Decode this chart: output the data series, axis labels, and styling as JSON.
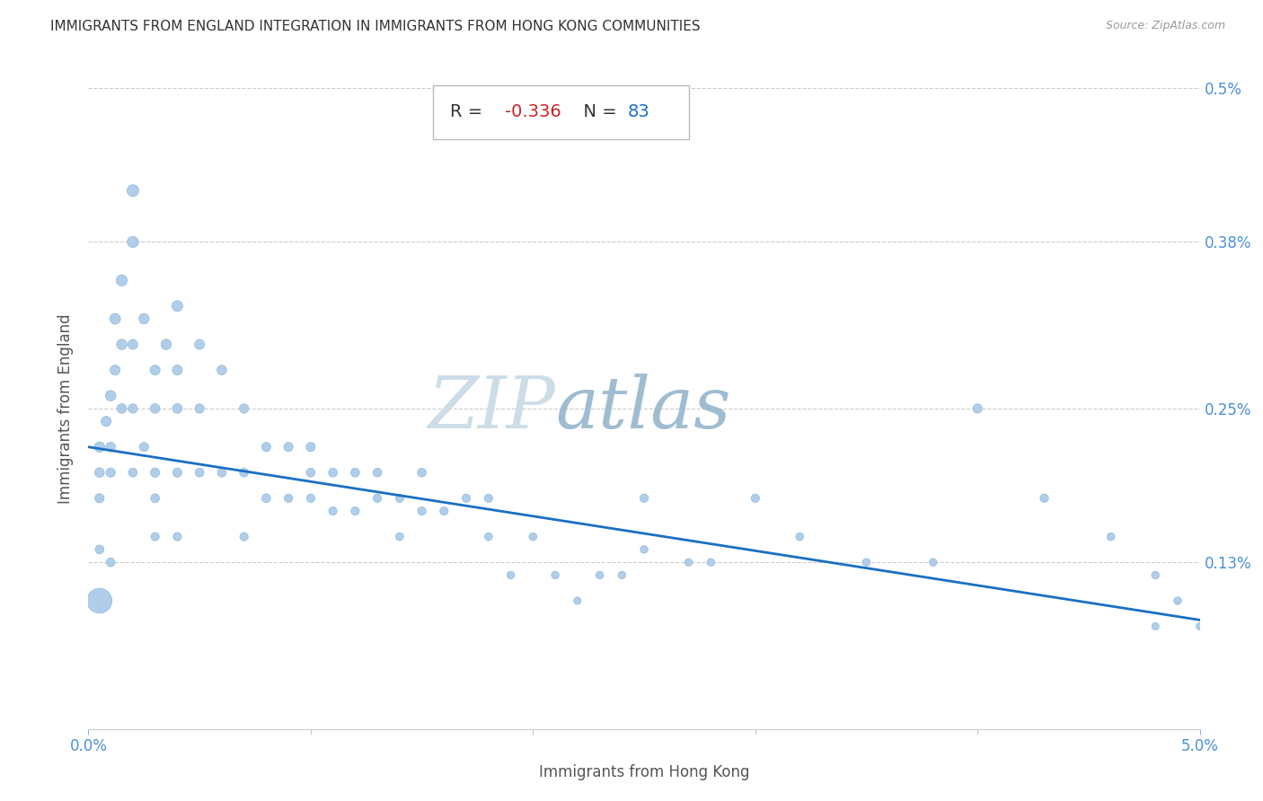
{
  "title": "IMMIGRANTS FROM ENGLAND INTEGRATION IN IMMIGRANTS FROM HONG KONG COMMUNITIES",
  "source": "Source: ZipAtlas.com",
  "xlabel": "Immigrants from Hong Kong",
  "ylabel": "Immigrants from England",
  "R": -0.336,
  "N": 83,
  "xlim": [
    0.0,
    0.05
  ],
  "ylim": [
    0.0,
    0.005
  ],
  "xticks": [
    0.0,
    0.05
  ],
  "xticklabels": [
    "0.0%",
    "5.0%"
  ],
  "right_yticks": [
    0.0013,
    0.0025,
    0.0038,
    0.005
  ],
  "right_yticklabels": [
    "0.13%",
    "0.25%",
    "0.38%",
    "0.5%"
  ],
  "dot_color": "#a8c8e8",
  "dot_edge_color": "#8ab8d8",
  "line_color": "#1a6fc4",
  "watermark_zip_color": "#c8ddf0",
  "watermark_atlas_color": "#9fbfd8",
  "title_color": "#333333",
  "axis_label_color": "#555555",
  "tick_color": "#4a90d9",
  "grid_color": "#cccccc",
  "regression_x0": 0.0,
  "regression_y0": 0.0022,
  "regression_x1": 0.05,
  "regression_y1": 0.00085,
  "scatter_x": [
    0.0005,
    0.0005,
    0.0005,
    0.0005,
    0.0005,
    0.0008,
    0.001,
    0.001,
    0.001,
    0.001,
    0.0012,
    0.0012,
    0.0015,
    0.0015,
    0.0015,
    0.002,
    0.002,
    0.002,
    0.002,
    0.002,
    0.0025,
    0.0025,
    0.003,
    0.003,
    0.003,
    0.003,
    0.003,
    0.0035,
    0.004,
    0.004,
    0.004,
    0.004,
    0.004,
    0.005,
    0.005,
    0.005,
    0.006,
    0.006,
    0.007,
    0.007,
    0.007,
    0.008,
    0.008,
    0.009,
    0.009,
    0.01,
    0.01,
    0.01,
    0.011,
    0.011,
    0.012,
    0.012,
    0.013,
    0.013,
    0.014,
    0.014,
    0.015,
    0.015,
    0.016,
    0.017,
    0.018,
    0.018,
    0.019,
    0.02,
    0.021,
    0.022,
    0.023,
    0.024,
    0.025,
    0.025,
    0.027,
    0.028,
    0.03,
    0.032,
    0.035,
    0.038,
    0.04,
    0.043,
    0.046,
    0.048,
    0.048,
    0.049,
    0.05
  ],
  "scatter_y": [
    0.0022,
    0.002,
    0.0018,
    0.0014,
    0.001,
    0.0024,
    0.0026,
    0.0022,
    0.002,
    0.0013,
    0.0032,
    0.0028,
    0.0035,
    0.003,
    0.0025,
    0.0042,
    0.0038,
    0.003,
    0.0025,
    0.002,
    0.0032,
    0.0022,
    0.0028,
    0.0025,
    0.002,
    0.0018,
    0.0015,
    0.003,
    0.0033,
    0.0028,
    0.0025,
    0.002,
    0.0015,
    0.003,
    0.0025,
    0.002,
    0.0028,
    0.002,
    0.0025,
    0.002,
    0.0015,
    0.0022,
    0.0018,
    0.0022,
    0.0018,
    0.0022,
    0.002,
    0.0018,
    0.002,
    0.0017,
    0.002,
    0.0017,
    0.002,
    0.0018,
    0.0018,
    0.0015,
    0.002,
    0.0017,
    0.0017,
    0.0018,
    0.0018,
    0.0015,
    0.0012,
    0.0015,
    0.0012,
    0.001,
    0.0012,
    0.0012,
    0.0018,
    0.0014,
    0.0013,
    0.0013,
    0.0018,
    0.0015,
    0.0013,
    0.0013,
    0.0025,
    0.0018,
    0.0015,
    0.0012,
    0.0008,
    0.001,
    0.0008
  ],
  "scatter_sizes": [
    70,
    60,
    55,
    50,
    400,
    65,
    70,
    60,
    55,
    50,
    75,
    65,
    80,
    70,
    60,
    90,
    80,
    65,
    55,
    50,
    70,
    55,
    65,
    60,
    55,
    50,
    45,
    70,
    75,
    65,
    60,
    55,
    45,
    65,
    55,
    50,
    60,
    50,
    55,
    50,
    45,
    55,
    50,
    55,
    45,
    55,
    50,
    45,
    50,
    45,
    50,
    45,
    50,
    45,
    45,
    40,
    50,
    45,
    45,
    45,
    45,
    40,
    38,
    40,
    38,
    35,
    38,
    38,
    45,
    38,
    38,
    38,
    45,
    40,
    38,
    38,
    55,
    45,
    40,
    38,
    35,
    38,
    35
  ]
}
